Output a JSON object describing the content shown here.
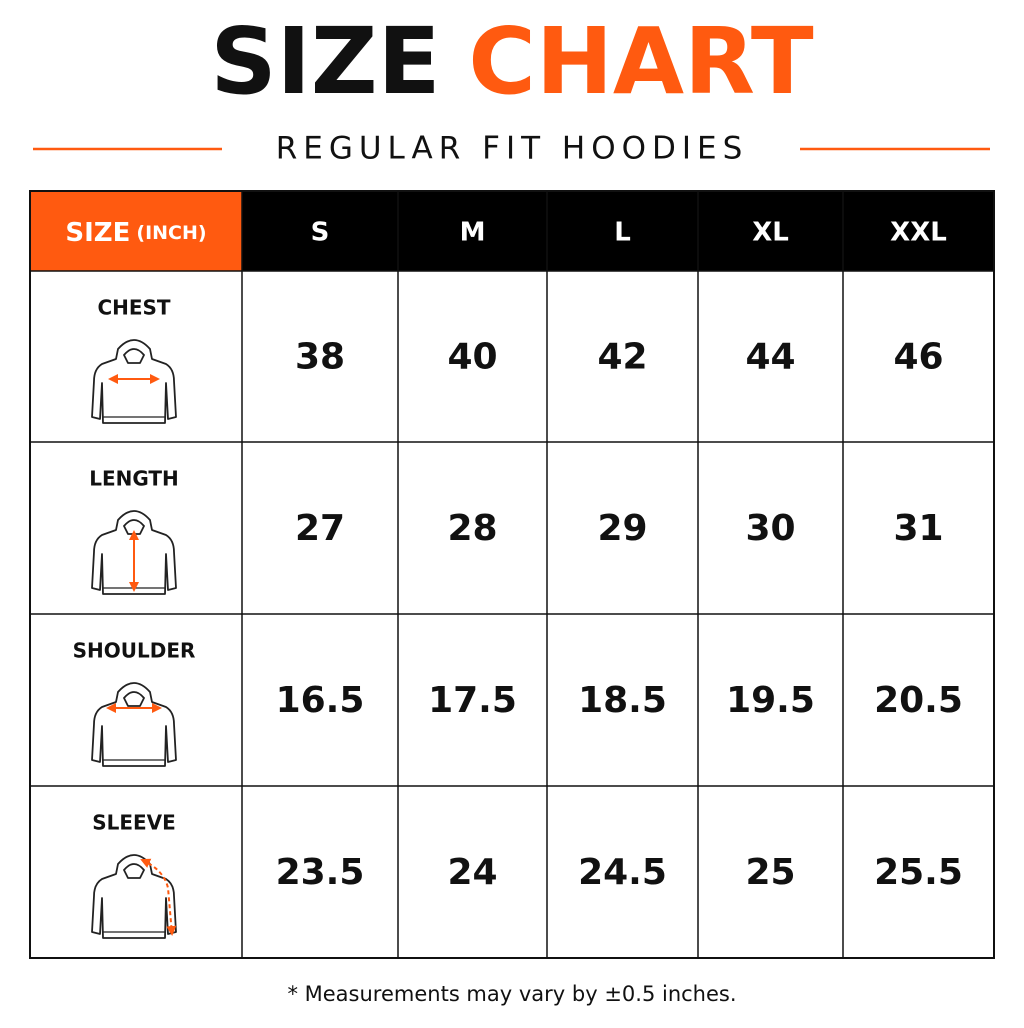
{
  "header": {
    "title_part1": "SIZE",
    "title_part2": "CHART",
    "subtitle": "REGULAR FIT HOODIES"
  },
  "table": {
    "corner_label": "SIZE",
    "corner_unit": "(INCH)",
    "columns": [
      "S",
      "M",
      "L",
      "XL",
      "XXL"
    ],
    "rows": [
      {
        "label": "CHEST",
        "values": [
          38,
          40,
          42,
          44,
          46
        ]
      },
      {
        "label": "LENGTH",
        "values": [
          27,
          28,
          29,
          30,
          31
        ]
      },
      {
        "label": "SHOULDER",
        "values": [
          16.5,
          17.5,
          18.5,
          19.5,
          20.5
        ]
      },
      {
        "label": "SLEEVE",
        "values": [
          23.5,
          24,
          24.5,
          25,
          25.5
        ]
      }
    ]
  },
  "footnote": "* Measurements may vary by ±0.5 inches."
}
